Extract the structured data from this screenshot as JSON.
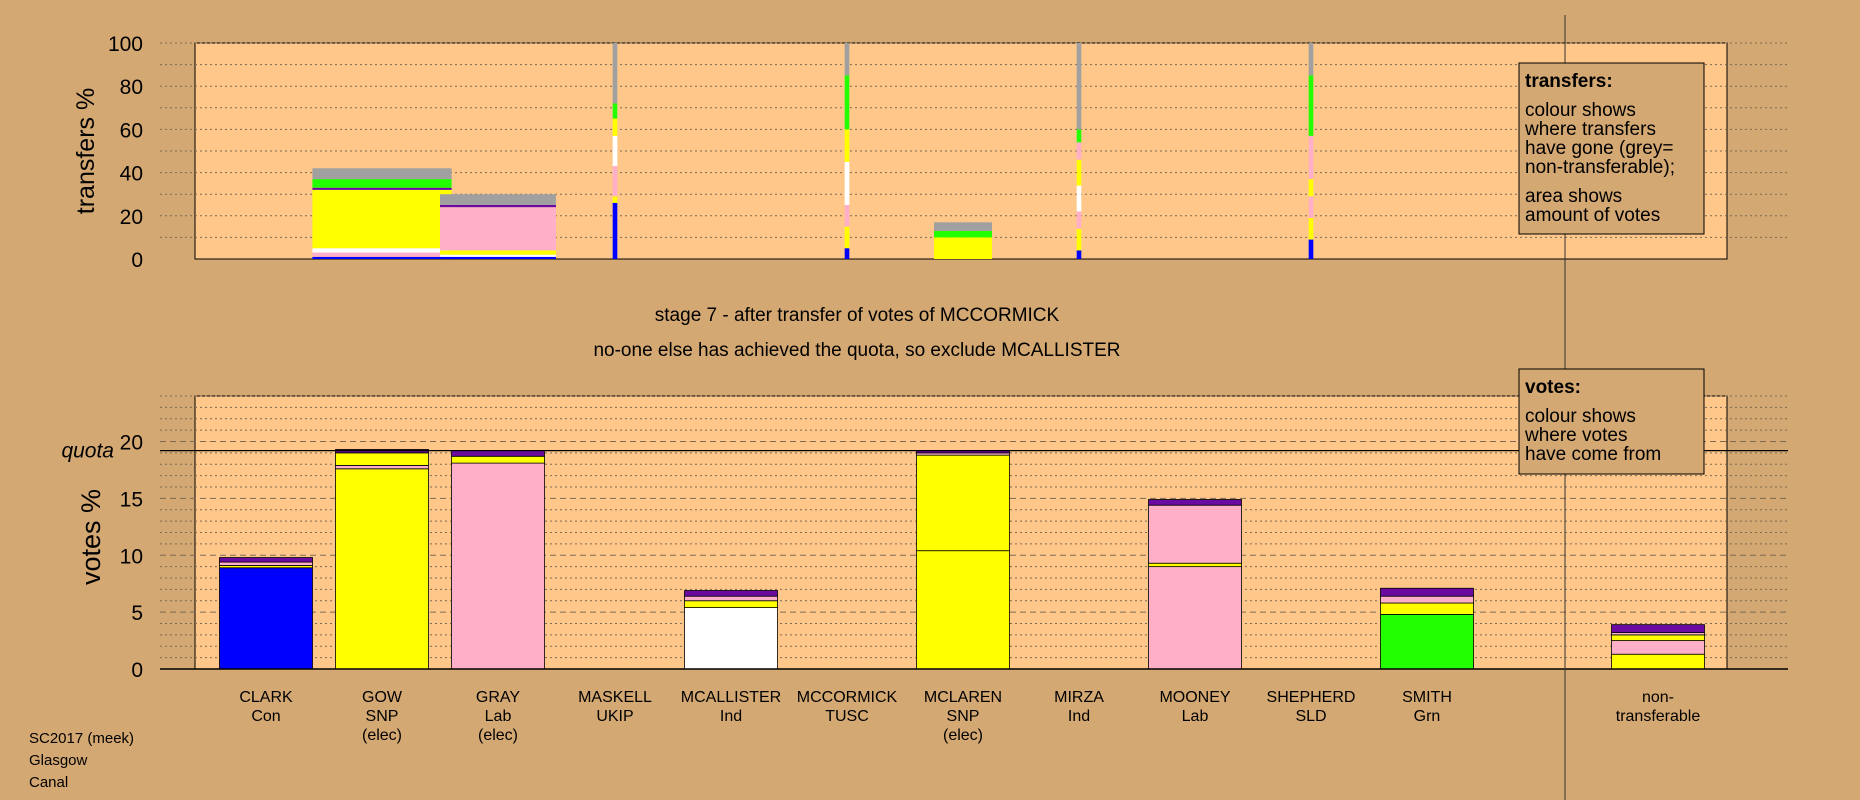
{
  "colors": {
    "background": "#d4a872",
    "panel": "#ffc88a",
    "legend_box": "#d4a872",
    "Con": "#0000ff",
    "SNP": "#ffff00",
    "Lab": "#ffb0c8",
    "Ind": "#ffffff",
    "Grn": "#22ff00",
    "nontransferable": "#a0a0a0",
    "dark": "#6a0aa0"
  },
  "footer": {
    "line1": "SC2017 (meek)",
    "line2": "Glasgow",
    "line3": "Canal"
  },
  "stage": {
    "line1": "stage 7 - after transfer of votes of MCCORMICK",
    "line2": "no-one else has achieved the quota, so exclude MCALLISTER"
  },
  "transfers_legend": {
    "title": "transfers:",
    "line1": "colour shows",
    "line2": "where transfers",
    "line3": "have gone (grey=",
    "line4": "non-transferable);",
    "line5": "area shows",
    "line6": "amount of votes"
  },
  "votes_legend": {
    "title": "votes:",
    "line1": "colour shows",
    "line2": "where votes",
    "line3": "have come from"
  },
  "chart_data": [
    {
      "type": "bar",
      "title": "",
      "ylabel": "transfers %",
      "ylim": [
        0,
        100
      ],
      "yticks": [
        "0",
        "20",
        "40",
        "60",
        "80",
        "100"
      ],
      "categories": [
        "CLARK",
        "GOW",
        "GRAY",
        "MASKELL",
        "MCALLISTER",
        "MCCORMICK",
        "MCLAREN",
        "MIRZA",
        "MOONEY",
        "SHEPHERD",
        "SMITH"
      ],
      "stacks": [
        {
          "candidate": "GOW",
          "width": 1.2,
          "segments": [
            {
              "party": "Con",
              "value": 1
            },
            {
              "party": "Lab",
              "value": 2
            },
            {
              "party": "Ind",
              "value": 2
            },
            {
              "party": "SNP",
              "value": 27
            },
            {
              "party": "dark",
              "value": 1
            },
            {
              "party": "Grn",
              "value": 4
            },
            {
              "party": "nontransferable",
              "value": 5
            }
          ]
        },
        {
          "candidate": "GRAY",
          "width": 1.0,
          "segments": [
            {
              "party": "Con",
              "value": 1
            },
            {
              "party": "Ind",
              "value": 1
            },
            {
              "party": "SNP",
              "value": 2
            },
            {
              "party": "Lab",
              "value": 20
            },
            {
              "party": "dark",
              "value": 1
            },
            {
              "party": "nontransferable",
              "value": 5
            }
          ]
        },
        {
          "candidate": "MASKELL",
          "width": 0.04,
          "segments": [
            {
              "party": "Con",
              "value": 26
            },
            {
              "party": "SNP",
              "value": 3
            },
            {
              "party": "Lab",
              "value": 14
            },
            {
              "party": "Ind",
              "value": 14
            },
            {
              "party": "SNP",
              "value": 8
            },
            {
              "party": "Grn",
              "value": 7
            },
            {
              "party": "nontransferable",
              "value": 28
            }
          ]
        },
        {
          "candidate": "MCCORMICK",
          "width": 0.04,
          "segments": [
            {
              "party": "Con",
              "value": 5
            },
            {
              "party": "SNP",
              "value": 10
            },
            {
              "party": "Lab",
              "value": 10
            },
            {
              "party": "Ind",
              "value": 20
            },
            {
              "party": "SNP",
              "value": 15
            },
            {
              "party": "Grn",
              "value": 25
            },
            {
              "party": "nontransferable",
              "value": 15
            }
          ]
        },
        {
          "candidate": "MCLAREN",
          "width": 0.5,
          "segments": [
            {
              "party": "SNP",
              "value": 10
            },
            {
              "party": "Grn",
              "value": 3
            },
            {
              "party": "nontransferable",
              "value": 4
            }
          ]
        },
        {
          "candidate": "MIRZA",
          "width": 0.04,
          "segments": [
            {
              "party": "Con",
              "value": 4
            },
            {
              "party": "SNP",
              "value": 10
            },
            {
              "party": "Lab",
              "value": 8
            },
            {
              "party": "Ind",
              "value": 12
            },
            {
              "party": "SNP",
              "value": 12
            },
            {
              "party": "Lab",
              "value": 8
            },
            {
              "party": "Grn",
              "value": 6
            },
            {
              "party": "nontransferable",
              "value": 40
            }
          ]
        },
        {
          "candidate": "SHEPHERD",
          "width": 0.04,
          "segments": [
            {
              "party": "Con",
              "value": 9
            },
            {
              "party": "SNP",
              "value": 10
            },
            {
              "party": "Lab",
              "value": 10
            },
            {
              "party": "SNP",
              "value": 8
            },
            {
              "party": "Lab",
              "value": 20
            },
            {
              "party": "Grn",
              "value": 28
            },
            {
              "party": "nontransferable",
              "value": 15
            }
          ]
        }
      ]
    },
    {
      "type": "bar",
      "title": "",
      "ylabel": "votes %",
      "ylim": [
        0,
        24
      ],
      "yticks": [
        "0",
        "5",
        "10",
        "15",
        "20"
      ],
      "quota": 19.2,
      "quota_label": "quota",
      "categories": [
        {
          "name": "CLARK",
          "party": "Con",
          "note": ""
        },
        {
          "name": "GOW",
          "party": "SNP",
          "note": "(elec)"
        },
        {
          "name": "GRAY",
          "party": "Lab",
          "note": "(elec)"
        },
        {
          "name": "MASKELL",
          "party": "UKIP",
          "note": ""
        },
        {
          "name": "MCALLISTER",
          "party": "Ind",
          "note": ""
        },
        {
          "name": "MCCORMICK",
          "party": "TUSC",
          "note": ""
        },
        {
          "name": "MCLAREN",
          "party": "SNP",
          "note": "(elec)"
        },
        {
          "name": "MIRZA",
          "party": "Ind",
          "note": ""
        },
        {
          "name": "MOONEY",
          "party": "Lab",
          "note": ""
        },
        {
          "name": "SHEPHERD",
          "party": "SLD",
          "note": ""
        },
        {
          "name": "SMITH",
          "party": "Grn",
          "note": ""
        }
      ],
      "nontransferable_label": {
        "line1": "non-",
        "line2": "transferable"
      },
      "stacks": [
        {
          "candidate": "CLARK",
          "segments": [
            {
              "party": "Con",
              "value": 8.9
            },
            {
              "party": "SNP",
              "value": 0.2
            },
            {
              "party": "Lab",
              "value": 0.3
            },
            {
              "party": "dark",
              "value": 0.4
            }
          ]
        },
        {
          "candidate": "GOW",
          "segments": [
            {
              "party": "SNP",
              "value": 17.6
            },
            {
              "party": "Lab",
              "value": 0.3
            },
            {
              "party": "SNP",
              "value": 1.1
            },
            {
              "party": "dark",
              "value": 0.3
            }
          ]
        },
        {
          "candidate": "GRAY",
          "segments": [
            {
              "party": "Lab",
              "value": 18.1
            },
            {
              "party": "SNP",
              "value": 0.6
            },
            {
              "party": "dark",
              "value": 0.5
            }
          ]
        },
        {
          "candidate": "MASKELL",
          "segments": []
        },
        {
          "candidate": "MCALLISTER",
          "segments": [
            {
              "party": "Ind",
              "value": 5.4
            },
            {
              "party": "SNP",
              "value": 0.6
            },
            {
              "party": "Lab",
              "value": 0.4
            },
            {
              "party": "dark",
              "value": 0.5
            }
          ]
        },
        {
          "candidate": "MCCORMICK",
          "segments": []
        },
        {
          "candidate": "MCLAREN",
          "segments": [
            {
              "party": "SNP",
              "value": 10.4
            },
            {
              "party": "SNP",
              "value": 8.4
            },
            {
              "party": "Lab",
              "value": 0.2
            },
            {
              "party": "dark",
              "value": 0.2
            }
          ]
        },
        {
          "candidate": "MIRZA",
          "segments": []
        },
        {
          "candidate": "MOONEY",
          "segments": [
            {
              "party": "Lab",
              "value": 9.0
            },
            {
              "party": "SNP",
              "value": 0.3
            },
            {
              "party": "Lab",
              "value": 5.1
            },
            {
              "party": "dark",
              "value": 0.5
            }
          ]
        },
        {
          "candidate": "SHEPHERD",
          "segments": []
        },
        {
          "candidate": "SMITH",
          "segments": [
            {
              "party": "Grn",
              "value": 4.8
            },
            {
              "party": "SNP",
              "value": 1.0
            },
            {
              "party": "Lab",
              "value": 0.6
            },
            {
              "party": "dark",
              "value": 0.7
            }
          ]
        },
        {
          "candidate": "non-transferable",
          "segments": [
            {
              "party": "SNP",
              "value": 1.3
            },
            {
              "party": "Lab",
              "value": 1.2
            },
            {
              "party": "SNP",
              "value": 0.5
            },
            {
              "party": "Lab",
              "value": 0.2
            },
            {
              "party": "dark",
              "value": 0.7
            }
          ]
        }
      ]
    }
  ]
}
